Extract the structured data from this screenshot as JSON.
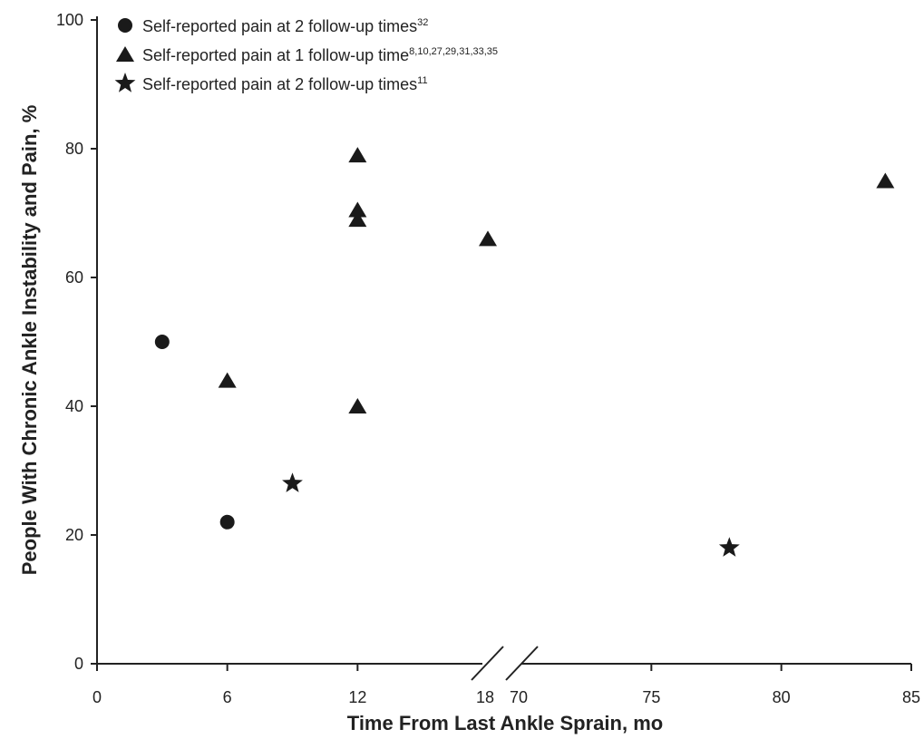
{
  "chart_data": {
    "type": "scatter",
    "xlabel": "Time From Last Ankle Sprain, mo",
    "ylabel": "People With Chronic Ankle Instability and Pain, %",
    "ylim": [
      0,
      100
    ],
    "y_ticks": [
      0,
      20,
      40,
      60,
      80,
      100
    ],
    "x_axis_break": {
      "left_segment": [
        0,
        18
      ],
      "right_segment": [
        70,
        85
      ]
    },
    "x_ticks": [
      0,
      6,
      12,
      18,
      70,
      75,
      80,
      85
    ],
    "grid": false,
    "legend_position": "top-left",
    "series": [
      {
        "name": "Self-reported pain at 2 follow-up times",
        "sup": "32",
        "marker": "circle",
        "points": [
          {
            "x": 3,
            "y": 50
          },
          {
            "x": 6,
            "y": 22
          }
        ]
      },
      {
        "name": "Self-reported pain at 1 follow-up time",
        "sup": "8,10,27,29,31,33,35",
        "marker": "triangle",
        "points": [
          {
            "x": 6,
            "y": 44
          },
          {
            "x": 12,
            "y": 79
          },
          {
            "x": 12,
            "y": 70.5
          },
          {
            "x": 12,
            "y": 69
          },
          {
            "x": 12,
            "y": 40
          },
          {
            "x": 18,
            "y": 66
          },
          {
            "x": 84,
            "y": 75
          }
        ]
      },
      {
        "name": "Self-reported pain at 2 follow-up times",
        "sup": "11",
        "marker": "star",
        "points": [
          {
            "x": 9,
            "y": 28
          },
          {
            "x": 78,
            "y": 18
          }
        ]
      }
    ]
  }
}
